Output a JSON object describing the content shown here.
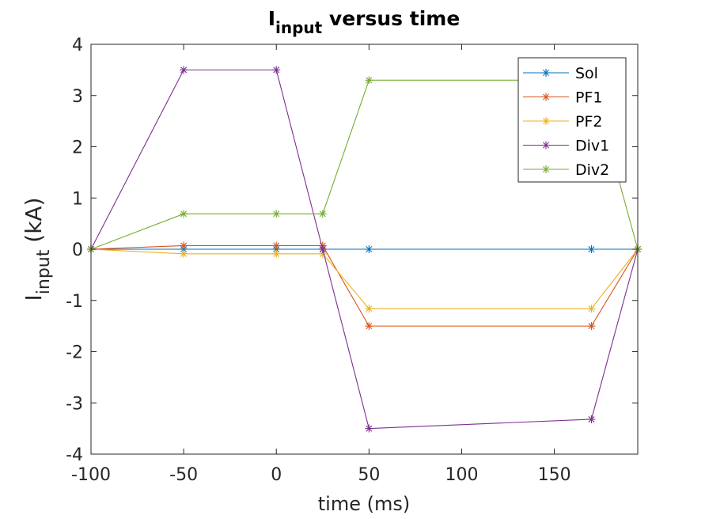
{
  "chart_data": {
    "type": "line",
    "title": {
      "main": "I",
      "sub": "input",
      "rest": " versus time"
    },
    "xlabel": "time (ms)",
    "ylabel": {
      "main": "I",
      "sub": "input",
      "rest": " (kA)"
    },
    "xlim": [
      -100,
      195
    ],
    "ylim": [
      -4,
      4
    ],
    "xticks": [
      -100,
      -50,
      0,
      50,
      100,
      150
    ],
    "yticks": [
      -4,
      -3,
      -2,
      -1,
      0,
      1,
      2,
      3,
      4
    ],
    "grid": false,
    "legend_position": "top-right",
    "marker": "asterisk",
    "x": [
      -100,
      -50,
      0,
      25,
      50,
      170,
      195
    ],
    "series": [
      {
        "name": "Sol",
        "color": "#0072BD",
        "values": [
          0,
          0,
          0,
          0,
          0,
          0,
          0
        ]
      },
      {
        "name": "PF1",
        "color": "#D95319",
        "values": [
          0,
          0.07,
          0.07,
          0.07,
          -1.5,
          -1.5,
          0
        ]
      },
      {
        "name": "PF2",
        "color": "#EDB120",
        "values": [
          0,
          -0.09,
          -0.09,
          -0.09,
          -1.16,
          -1.16,
          0
        ]
      },
      {
        "name": "Div1",
        "color": "#7E2F8E",
        "values": [
          0,
          3.5,
          3.5,
          0,
          -3.5,
          -3.32,
          0
        ]
      },
      {
        "name": "Div2",
        "color": "#77AC30",
        "values": [
          0,
          0.69,
          0.69,
          0.69,
          3.3,
          3.3,
          0
        ]
      }
    ]
  }
}
